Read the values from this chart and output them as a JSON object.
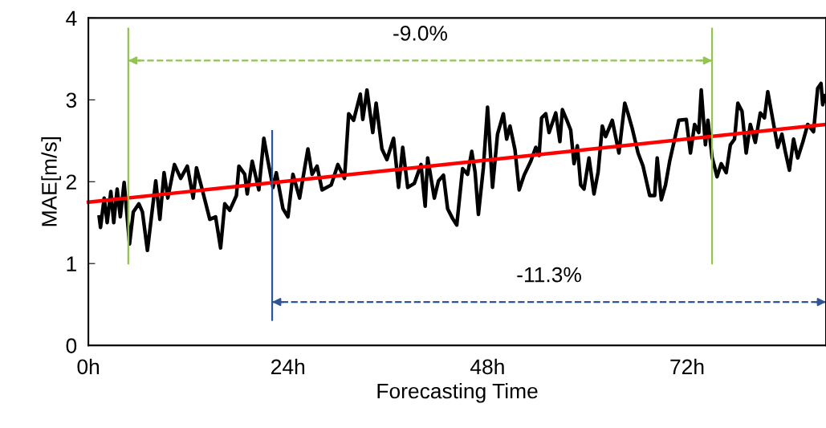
{
  "chart_data": {
    "type": "line",
    "xlabel": "Forecasting Time",
    "ylabel": "MAE[m/s]",
    "xlim": [
      0,
      88.7
    ],
    "xticks": [
      {
        "value": 0,
        "label": "0h"
      },
      {
        "value": 24,
        "label": "24h"
      },
      {
        "value": 48,
        "label": "48h"
      },
      {
        "value": 72,
        "label": "72h"
      }
    ],
    "ylim": [
      0,
      4
    ],
    "yticks": [
      0,
      1,
      2,
      3,
      4
    ],
    "grid": false,
    "legend": false,
    "series": [
      {
        "color": "#000000",
        "x": [
          1.3,
          1.46,
          1.9,
          2.26,
          2.7,
          3.05,
          3.46,
          3.84,
          4.3,
          4.95,
          5.4,
          6.07,
          6.5,
          7.1,
          8.1,
          8.6,
          9.1,
          9.55,
          10.35,
          11.1,
          11.9,
          12.6,
          13.0,
          13.7,
          14.6,
          15.3,
          15.9,
          16.4,
          17.0,
          17.8,
          18.1,
          18.8,
          19.1,
          19.7,
          20.5,
          21.1,
          21.6,
          22.2,
          22.6,
          23.4,
          24.0,
          24.6,
          25.4,
          26.4,
          26.9,
          27.5,
          28.1,
          29.2,
          30.0,
          30.8,
          31.3,
          31.9,
          32.7,
          33.0,
          33.5,
          34.2,
          34.6,
          35.3,
          35.9,
          36.7,
          37.3,
          37.8,
          38.4,
          39.2,
          40.0,
          40.5,
          40.8,
          41.6,
          42.1,
          42.7,
          43.2,
          43.8,
          44.3,
          45.0,
          45.6,
          46.1,
          46.5,
          46.9,
          47.5,
          48.0,
          48.6,
          49.2,
          49.9,
          50.3,
          50.7,
          51.3,
          51.8,
          52.4,
          53.2,
          53.8,
          54.2,
          54.5,
          55.0,
          55.4,
          56.2,
          56.7,
          57.0,
          57.5,
          58.0,
          58.4,
          58.8,
          59.2,
          59.6,
          60.2,
          60.8,
          61.3,
          61.8,
          62.2,
          63.0,
          63.8,
          64.5,
          64.9,
          65.4,
          66.1,
          66.7,
          67.5,
          68.1,
          68.4,
          68.9,
          69.4,
          69.9,
          70.5,
          71.0,
          71.9,
          72.4,
          72.9,
          73.4,
          73.7,
          74.2,
          74.5,
          75.0,
          75.6,
          76.1,
          76.7,
          77.2,
          77.7,
          78.1,
          78.6,
          79.1,
          79.6,
          80.2,
          80.8,
          81.3,
          81.7,
          82.3,
          82.9,
          83.4,
          83.8,
          84.3,
          84.8,
          85.3,
          85.9,
          86.5,
          87.2,
          87.7,
          88.1,
          88.3,
          88.6
        ],
        "values": [
          1.57,
          1.44,
          1.8,
          1.5,
          1.88,
          1.5,
          1.91,
          1.57,
          1.99,
          1.24,
          1.63,
          1.73,
          1.63,
          1.16,
          2.01,
          1.54,
          2.11,
          1.8,
          2.21,
          2.04,
          2.19,
          1.8,
          2.17,
          1.9,
          1.54,
          1.57,
          1.19,
          1.73,
          1.65,
          1.83,
          2.19,
          2.09,
          1.85,
          2.25,
          1.9,
          2.53,
          2.25,
          1.93,
          2.11,
          1.67,
          1.57,
          2.09,
          1.8,
          2.4,
          2.09,
          2.19,
          1.9,
          1.96,
          2.21,
          2.04,
          2.83,
          2.75,
          3.07,
          2.76,
          3.12,
          2.6,
          2.96,
          2.4,
          2.27,
          2.53,
          1.93,
          2.42,
          1.93,
          1.98,
          2.21,
          1.7,
          2.29,
          1.8,
          2.01,
          2.08,
          1.67,
          1.55,
          1.47,
          2.16,
          2.09,
          2.37,
          2.12,
          1.6,
          2.17,
          2.91,
          1.93,
          2.58,
          2.83,
          2.52,
          2.68,
          2.39,
          1.9,
          2.08,
          2.25,
          2.42,
          2.32,
          2.78,
          2.83,
          2.6,
          2.84,
          2.49,
          2.88,
          2.76,
          2.63,
          2.22,
          2.44,
          1.96,
          1.91,
          2.29,
          1.85,
          2.12,
          2.68,
          2.55,
          2.75,
          2.35,
          2.96,
          2.83,
          2.65,
          2.35,
          2.19,
          1.83,
          1.83,
          2.29,
          1.78,
          1.96,
          2.25,
          2.52,
          2.75,
          2.76,
          2.35,
          2.7,
          2.6,
          3.12,
          2.45,
          2.75,
          2.3,
          2.06,
          2.22,
          2.11,
          2.45,
          2.52,
          2.96,
          2.86,
          2.35,
          2.7,
          2.48,
          2.84,
          2.78,
          3.1,
          2.76,
          2.42,
          2.58,
          2.37,
          2.14,
          2.52,
          2.29,
          2.48,
          2.7,
          2.61,
          3.14,
          3.2,
          2.94,
          3.05
        ]
      },
      {
        "color": "#ff0000",
        "x": [
          0,
          88.7
        ],
        "values": [
          1.75,
          2.7
        ]
      },
      {
        "color": "#92c353",
        "x": [
          4.8,
          4.8
        ],
        "values": [
          1.0,
          3.87
        ]
      },
      {
        "color": "#92c353",
        "x": [
          75.0,
          75.0
        ],
        "values": [
          1.0,
          3.87
        ]
      },
      {
        "color": "#2f5597",
        "x": [
          22.1,
          22.1
        ],
        "values": [
          0.31,
          2.62
        ]
      },
      {
        "color": "#92c353",
        "x": [
          4.8,
          75.0
        ],
        "values": [
          3.48,
          3.48
        ],
        "line_style": "dashed"
      },
      {
        "color": "#2f5597",
        "x": [
          22.1,
          88.7
        ],
        "values": [
          0.53,
          0.53
        ],
        "line_style": "dashed"
      }
    ],
    "annotations": [
      "-9.0%",
      "-11.3%"
    ]
  }
}
